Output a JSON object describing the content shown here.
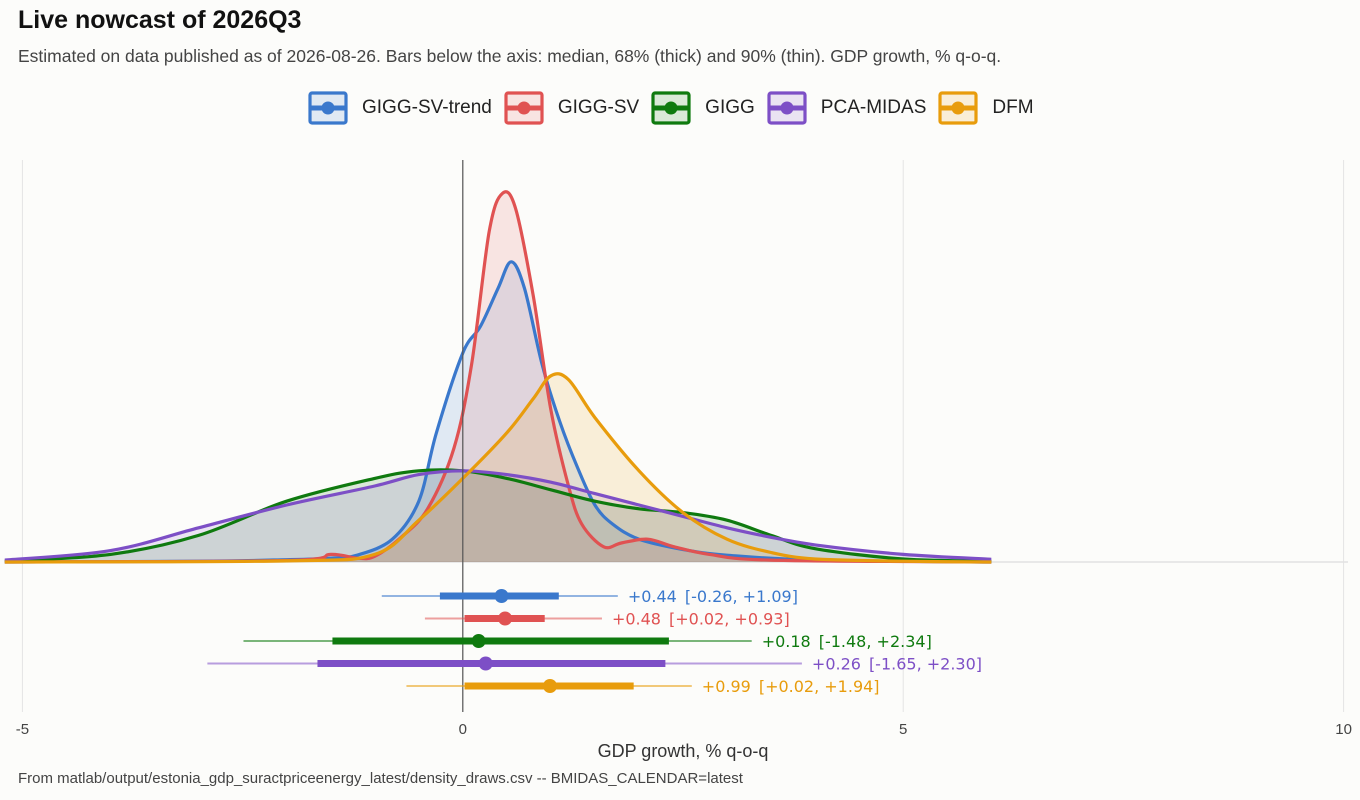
{
  "title": "Live nowcast of 2026Q3",
  "subtitle": "Estimated on data published as of 2026-08-26. Bars below the axis: median, 68% (thick) and 90% (thin). GDP growth, % q-o-q.",
  "caption": "From matlab/output/estonia_gdp_suractpriceenergy_latest/density_draws.csv  --  BMIDAS_CALENDAR=latest",
  "chart_data": {
    "type": "area",
    "xlabel": "GDP growth, % q-o-q",
    "ylabel": "",
    "xlim": [
      -5.05,
      10.05
    ],
    "xticks": [
      -5,
      0,
      5,
      10
    ],
    "xtick_labels": [
      "-5",
      "0",
      "5",
      "10"
    ],
    "grid": true,
    "legend_position": "top",
    "series": [
      {
        "name": "GIGG-SV-trend",
        "color": "#3a78cc",
        "density": [
          [
            -5.2,
            0
          ],
          [
            -3,
            0.002
          ],
          [
            -2,
            0.006
          ],
          [
            -1.5,
            0.01
          ],
          [
            -1.2,
            0.018
          ],
          [
            -0.8,
            0.06
          ],
          [
            -0.5,
            0.16
          ],
          [
            -0.3,
            0.34
          ],
          [
            0,
            0.55
          ],
          [
            0.2,
            0.62
          ],
          [
            0.4,
            0.72
          ],
          [
            0.55,
            0.79
          ],
          [
            0.7,
            0.72
          ],
          [
            0.9,
            0.52
          ],
          [
            1.1,
            0.37
          ],
          [
            1.3,
            0.25
          ],
          [
            1.5,
            0.15
          ],
          [
            1.7,
            0.1
          ],
          [
            2.0,
            0.06
          ],
          [
            2.5,
            0.033
          ],
          [
            3,
            0.018
          ],
          [
            4,
            0.005
          ],
          [
            6,
            0
          ]
        ],
        "median": 0.44,
        "q68": [
          -0.26,
          1.09
        ],
        "q90": [
          -0.92,
          1.76
        ],
        "label": "+0.44",
        "interval": "[-0.26, +1.09]"
      },
      {
        "name": "GIGG-SV",
        "color": "#e05252",
        "density": [
          [
            -5.2,
            0
          ],
          [
            -2,
            0.004
          ],
          [
            -1.5,
            0.02
          ],
          [
            -1.2,
            0.01
          ],
          [
            -1,
            0.015
          ],
          [
            -0.7,
            0.065
          ],
          [
            -0.4,
            0.14
          ],
          [
            -0.1,
            0.3
          ],
          [
            0.1,
            0.52
          ],
          [
            0.3,
            0.87
          ],
          [
            0.45,
            0.97
          ],
          [
            0.6,
            0.93
          ],
          [
            0.8,
            0.7
          ],
          [
            1.0,
            0.4
          ],
          [
            1.2,
            0.2
          ],
          [
            1.35,
            0.1
          ],
          [
            1.6,
            0.04
          ],
          [
            1.8,
            0.05
          ],
          [
            2.1,
            0.06
          ],
          [
            2.4,
            0.04
          ],
          [
            2.8,
            0.02
          ],
          [
            3.5,
            0.005
          ],
          [
            6,
            0
          ]
        ],
        "median": 0.48,
        "q68": [
          0.02,
          0.93
        ],
        "q90": [
          -0.43,
          1.58
        ],
        "label": "+0.48",
        "interval": "[+0.02, +0.93]"
      },
      {
        "name": "GIGG",
        "color": "#0f7a0f",
        "density": [
          [
            -5.2,
            0.002
          ],
          [
            -4,
            0.02
          ],
          [
            -3,
            0.07
          ],
          [
            -2,
            0.16
          ],
          [
            -1,
            0.22
          ],
          [
            -0.5,
            0.24
          ],
          [
            0,
            0.24
          ],
          [
            0.5,
            0.22
          ],
          [
            1,
            0.19
          ],
          [
            1.5,
            0.16
          ],
          [
            2,
            0.14
          ],
          [
            2.5,
            0.13
          ],
          [
            3,
            0.11
          ],
          [
            3.5,
            0.07
          ],
          [
            4,
            0.035
          ],
          [
            5,
            0.008
          ],
          [
            6,
            0.002
          ]
        ],
        "median": 0.18,
        "q68": [
          -1.48,
          2.34
        ],
        "q90": [
          -2.49,
          3.28
        ],
        "label": "+0.18",
        "interval": "[-1.48, +2.34]"
      },
      {
        "name": "PCA-MIDAS",
        "color": "#7d4fc6",
        "density": [
          [
            -5.2,
            0.005
          ],
          [
            -4,
            0.03
          ],
          [
            -3,
            0.09
          ],
          [
            -2,
            0.15
          ],
          [
            -1,
            0.2
          ],
          [
            -0.5,
            0.23
          ],
          [
            0,
            0.24
          ],
          [
            0.5,
            0.23
          ],
          [
            1,
            0.21
          ],
          [
            1.5,
            0.18
          ],
          [
            2,
            0.15
          ],
          [
            2.5,
            0.12
          ],
          [
            3,
            0.09
          ],
          [
            3.5,
            0.065
          ],
          [
            4,
            0.045
          ],
          [
            5,
            0.02
          ],
          [
            6,
            0.007
          ]
        ],
        "median": 0.26,
        "q68": [
          -1.65,
          2.3
        ],
        "q90": [
          -2.9,
          3.85
        ],
        "label": "+0.26",
        "interval": "[-1.65, +2.30]"
      },
      {
        "name": "DFM",
        "color": "#e89c0c",
        "density": [
          [
            -5.2,
            0
          ],
          [
            -2,
            0.003
          ],
          [
            -1,
            0.02
          ],
          [
            -0.5,
            0.11
          ],
          [
            0,
            0.22
          ],
          [
            0.5,
            0.34
          ],
          [
            0.8,
            0.43
          ],
          [
            1.0,
            0.49
          ],
          [
            1.2,
            0.48
          ],
          [
            1.5,
            0.38
          ],
          [
            2,
            0.24
          ],
          [
            2.5,
            0.13
          ],
          [
            3,
            0.06
          ],
          [
            3.5,
            0.025
          ],
          [
            4,
            0.008
          ],
          [
            5,
            0.002
          ],
          [
            6,
            0
          ]
        ],
        "median": 0.99,
        "q68": [
          0.02,
          1.94
        ],
        "q90": [
          -0.64,
          2.6
        ],
        "label": "+0.99",
        "interval": "[+0.02, +1.94]"
      }
    ]
  }
}
